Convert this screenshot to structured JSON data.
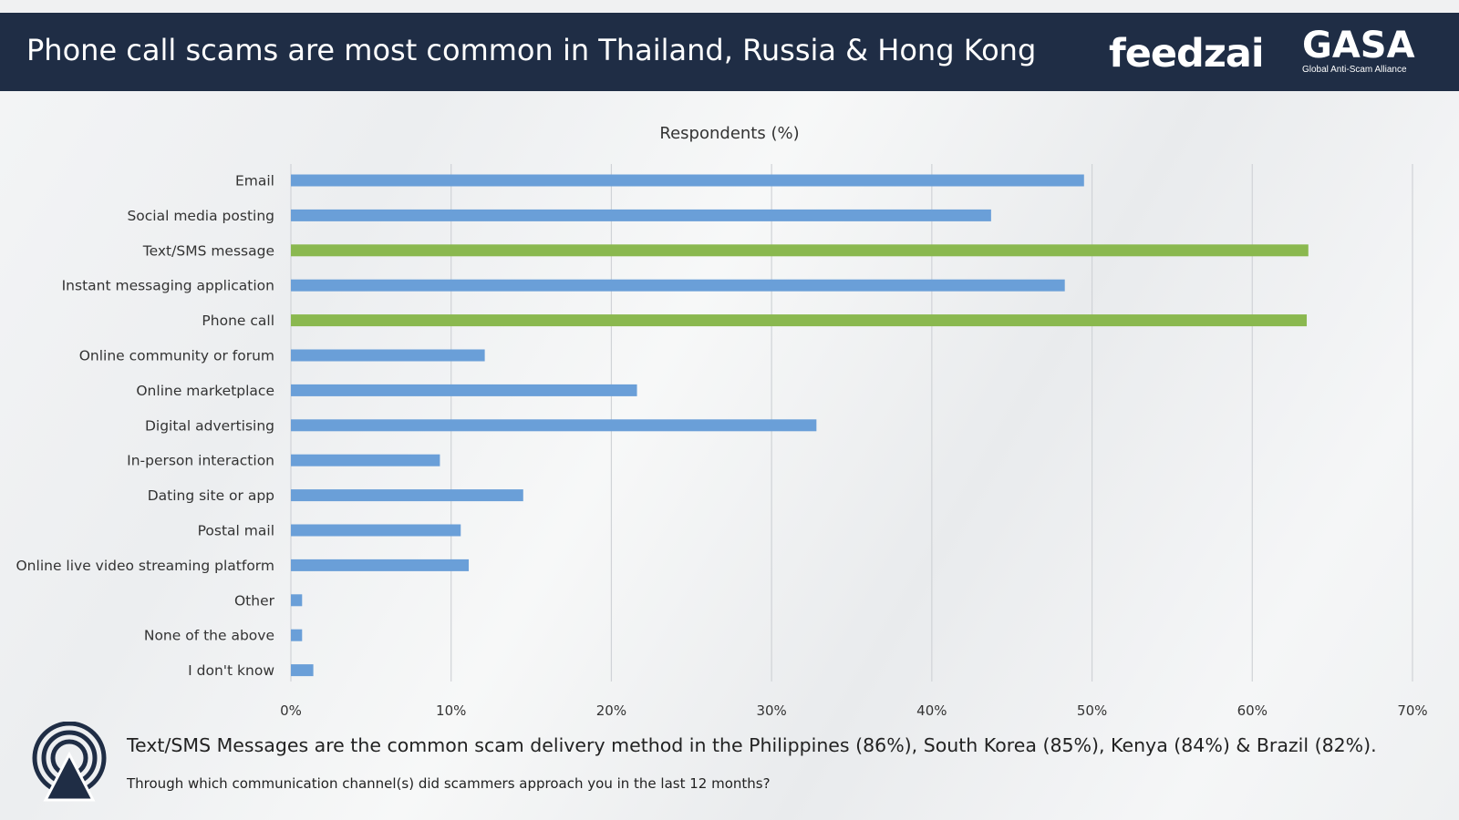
{
  "header": {
    "title": "Phone call scams are most common in Thailand, Russia & Hong Kong",
    "logo_feedzai": "feedzai",
    "logo_gasa": "GASA",
    "logo_gasa_sub": "Global Anti-Scam Alliance"
  },
  "chart_data": {
    "type": "bar",
    "orientation": "horizontal",
    "title": "Respondents (%)",
    "categories": [
      "Email",
      "Social media posting",
      "Text/SMS message",
      "Instant messaging application",
      "Phone call",
      "Online community or forum",
      "Online marketplace",
      "Digital advertising",
      "In-person interaction",
      "Dating site or app",
      "Postal mail",
      "Online live video streaming platform",
      "Other",
      "None of the above",
      "I don't know"
    ],
    "values": [
      49.5,
      43.7,
      63.5,
      48.3,
      63.4,
      12.1,
      21.6,
      32.8,
      9.3,
      14.5,
      10.6,
      11.1,
      0.7,
      0.7,
      1.4
    ],
    "highlight": [
      "Text/SMS message",
      "Phone call"
    ],
    "xlim": [
      0,
      70
    ],
    "xticks": [
      "0%",
      "10%",
      "20%",
      "30%",
      "40%",
      "50%",
      "60%",
      "70%"
    ],
    "grid": true,
    "colors": {
      "default": "#6a9fd8",
      "highlight": "#8ab84f"
    }
  },
  "footer": {
    "headline": "Text/SMS Messages are the common scam delivery method in the Philippines (86%), South Korea (85%), Kenya (84%) & Brazil (82%).",
    "question": "Through which communication channel(s) did scammers approach you in the last 12 months?"
  },
  "icons": {
    "footer_icon": "gasa-signal-icon"
  }
}
